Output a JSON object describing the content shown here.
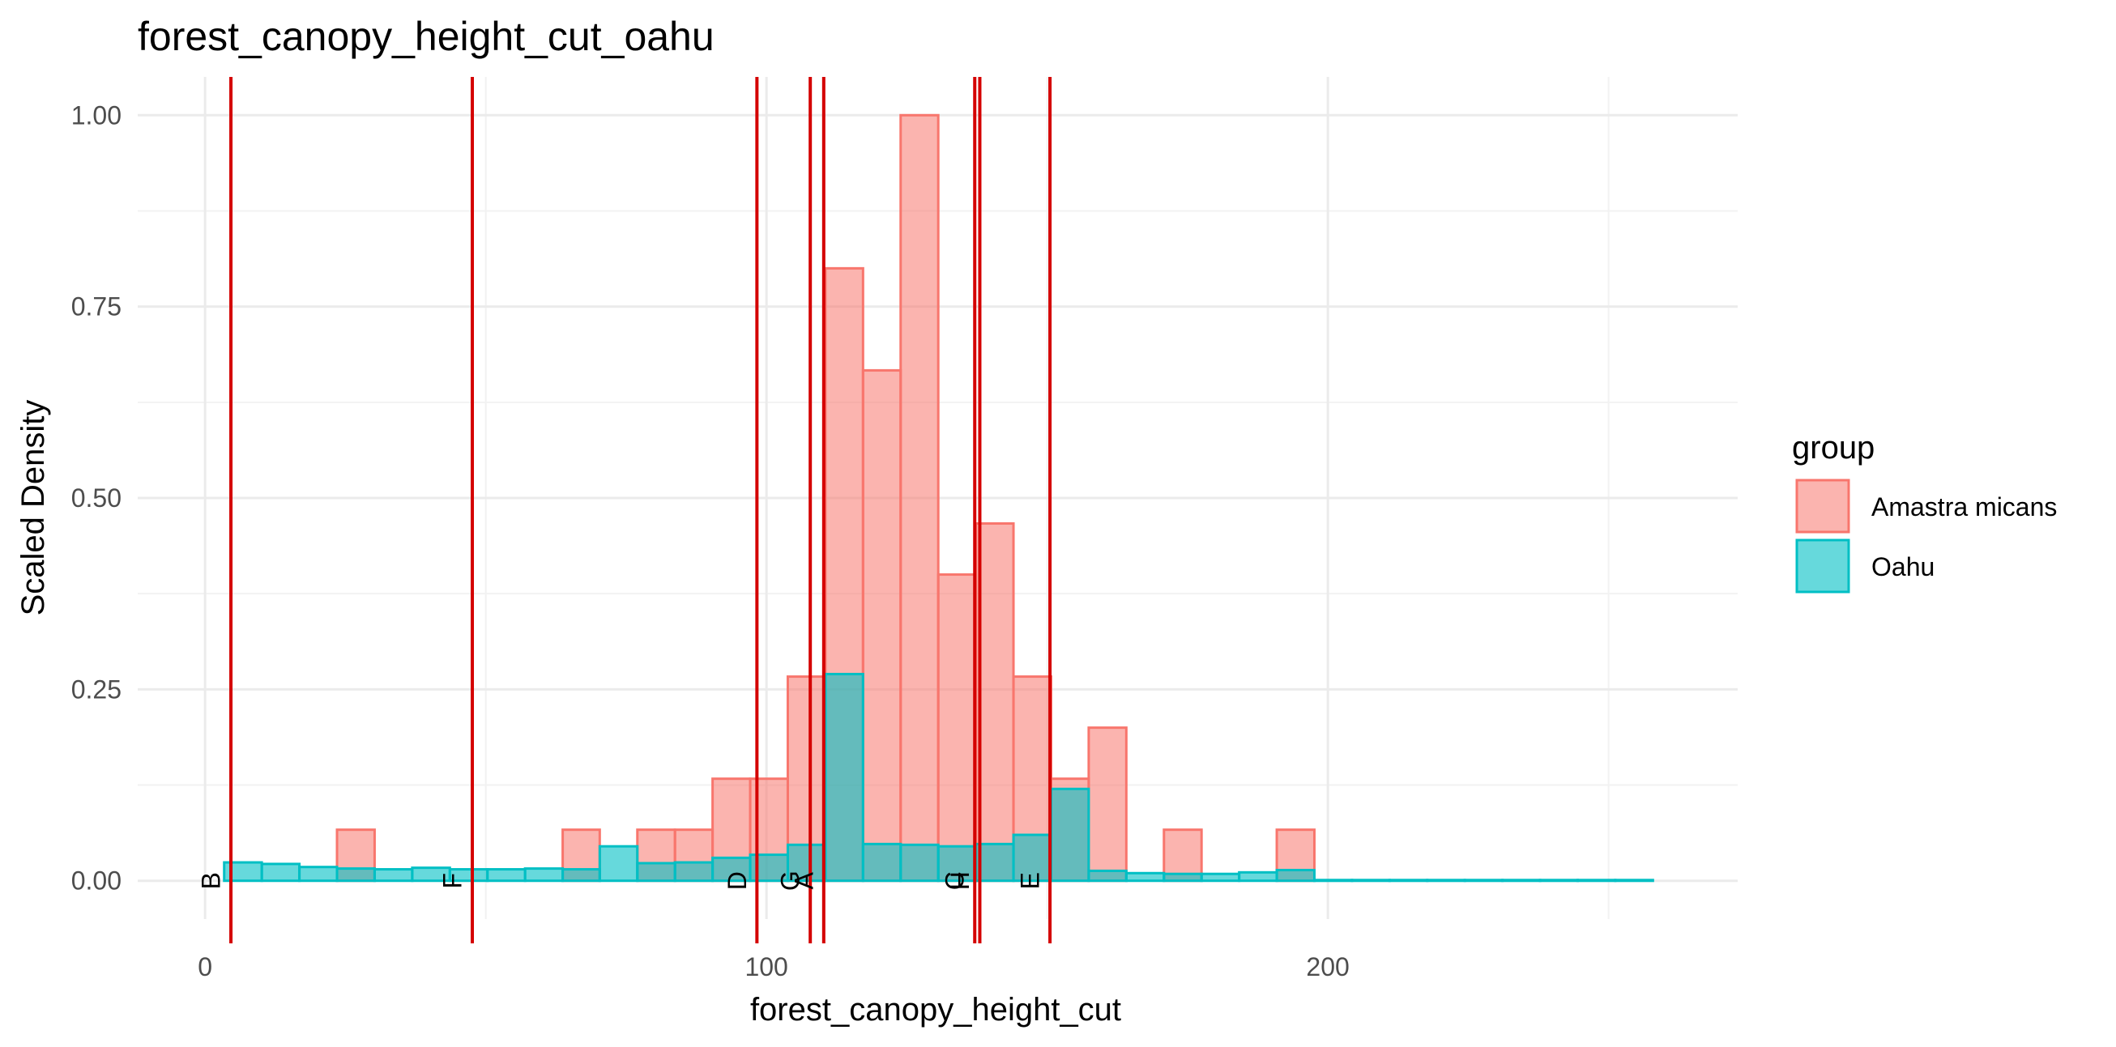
{
  "chart_data": {
    "type": "histogram",
    "title": "forest_canopy_height_cut_oahu",
    "xlabel": "forest_canopy_height_cut",
    "ylabel": "Scaled Density",
    "xlim": [
      -12,
      273
    ],
    "ylim": [
      -0.05,
      1.05
    ],
    "x_ticks": [
      0,
      100,
      200
    ],
    "x_tick_labels": [
      "0",
      "100",
      "200"
    ],
    "y_ticks": [
      0.0,
      0.25,
      0.5,
      0.75,
      1.0
    ],
    "y_tick_labels": [
      "0.00",
      "0.25",
      "0.50",
      "0.75",
      "1.00"
    ],
    "grid": true,
    "legend": {
      "title": "group",
      "position": "right",
      "entries": [
        "Amastra micans",
        "Oahu"
      ]
    },
    "series": [
      {
        "name": "Amastra micans",
        "fill": "#F8766D",
        "bins": [
          {
            "x0": 23.5,
            "x1": 30.2,
            "value": 0.0667
          },
          {
            "x0": 63.7,
            "x1": 70.3,
            "value": 0.0667
          },
          {
            "x0": 77.0,
            "x1": 83.7,
            "value": 0.0667
          },
          {
            "x0": 83.7,
            "x1": 90.4,
            "value": 0.0667
          },
          {
            "x0": 90.4,
            "x1": 97.1,
            "value": 0.1333
          },
          {
            "x0": 97.1,
            "x1": 103.8,
            "value": 0.1333
          },
          {
            "x0": 103.8,
            "x1": 110.5,
            "value": 0.2667
          },
          {
            "x0": 110.5,
            "x1": 117.2,
            "value": 0.8
          },
          {
            "x0": 117.2,
            "x1": 123.9,
            "value": 0.6667
          },
          {
            "x0": 123.9,
            "x1": 130.6,
            "value": 1.0
          },
          {
            "x0": 130.6,
            "x1": 137.3,
            "value": 0.4
          },
          {
            "x0": 137.3,
            "x1": 144.0,
            "value": 0.4667
          },
          {
            "x0": 144.0,
            "x1": 150.7,
            "value": 0.2667
          },
          {
            "x0": 150.7,
            "x1": 157.4,
            "value": 0.1333
          },
          {
            "x0": 157.4,
            "x1": 164.1,
            "value": 0.2
          },
          {
            "x0": 170.8,
            "x1": 177.5,
            "value": 0.0667
          },
          {
            "x0": 190.9,
            "x1": 197.6,
            "value": 0.0667
          }
        ]
      },
      {
        "name": "Oahu",
        "fill": "#00BFC4",
        "bins": [
          {
            "x0": 3.4,
            "x1": 10.1,
            "value": 0.024
          },
          {
            "x0": 10.1,
            "x1": 16.8,
            "value": 0.022
          },
          {
            "x0": 16.8,
            "x1": 23.5,
            "value": 0.018
          },
          {
            "x0": 23.5,
            "x1": 30.2,
            "value": 0.016
          },
          {
            "x0": 30.2,
            "x1": 36.9,
            "value": 0.015
          },
          {
            "x0": 36.9,
            "x1": 43.6,
            "value": 0.017
          },
          {
            "x0": 43.6,
            "x1": 50.3,
            "value": 0.015
          },
          {
            "x0": 50.3,
            "x1": 57.0,
            "value": 0.015
          },
          {
            "x0": 57.0,
            "x1": 63.7,
            "value": 0.016
          },
          {
            "x0": 63.7,
            "x1": 70.3,
            "value": 0.015
          },
          {
            "x0": 70.3,
            "x1": 77.0,
            "value": 0.045
          },
          {
            "x0": 77.0,
            "x1": 83.7,
            "value": 0.023
          },
          {
            "x0": 83.7,
            "x1": 90.4,
            "value": 0.024
          },
          {
            "x0": 90.4,
            "x1": 97.1,
            "value": 0.03
          },
          {
            "x0": 97.1,
            "x1": 103.8,
            "value": 0.034
          },
          {
            "x0": 103.8,
            "x1": 110.5,
            "value": 0.047
          },
          {
            "x0": 110.5,
            "x1": 117.2,
            "value": 0.27
          },
          {
            "x0": 117.2,
            "x1": 123.9,
            "value": 0.048
          },
          {
            "x0": 123.9,
            "x1": 130.6,
            "value": 0.047
          },
          {
            "x0": 130.6,
            "x1": 137.3,
            "value": 0.045
          },
          {
            "x0": 137.3,
            "x1": 144.0,
            "value": 0.048
          },
          {
            "x0": 144.0,
            "x1": 150.7,
            "value": 0.06
          },
          {
            "x0": 150.7,
            "x1": 157.4,
            "value": 0.12
          },
          {
            "x0": 157.4,
            "x1": 164.1,
            "value": 0.013
          },
          {
            "x0": 164.1,
            "x1": 170.8,
            "value": 0.01
          },
          {
            "x0": 170.8,
            "x1": 177.5,
            "value": 0.009
          },
          {
            "x0": 177.5,
            "x1": 184.2,
            "value": 0.009
          },
          {
            "x0": 184.2,
            "x1": 190.9,
            "value": 0.011
          },
          {
            "x0": 190.9,
            "x1": 197.6,
            "value": 0.014
          },
          {
            "x0": 197.6,
            "x1": 204.3,
            "value": 0.001
          },
          {
            "x0": 204.3,
            "x1": 211.0,
            "value": 0.001
          },
          {
            "x0": 211.0,
            "x1": 217.7,
            "value": 0.001
          },
          {
            "x0": 217.7,
            "x1": 224.4,
            "value": 0.001
          },
          {
            "x0": 224.4,
            "x1": 231.1,
            "value": 0.001
          },
          {
            "x0": 231.1,
            "x1": 237.8,
            "value": 0.001
          },
          {
            "x0": 237.8,
            "x1": 244.5,
            "value": 0.001
          },
          {
            "x0": 244.5,
            "x1": 251.2,
            "value": 0.001
          },
          {
            "x0": 251.2,
            "x1": 257.9,
            "value": 0.001
          }
        ]
      }
    ],
    "reference_lines": {
      "color": "#d40000",
      "lines": [
        {
          "label": "B",
          "x": 4.6
        },
        {
          "label": "F",
          "x": 47.6
        },
        {
          "label": "D",
          "x": 98.3
        },
        {
          "label": "G",
          "x": 107.8
        },
        {
          "label": "A",
          "x": 110.2
        },
        {
          "label": "C",
          "x": 137.1
        },
        {
          "label": "H",
          "x": 138.0
        },
        {
          "label": "E",
          "x": 150.5
        }
      ]
    }
  }
}
